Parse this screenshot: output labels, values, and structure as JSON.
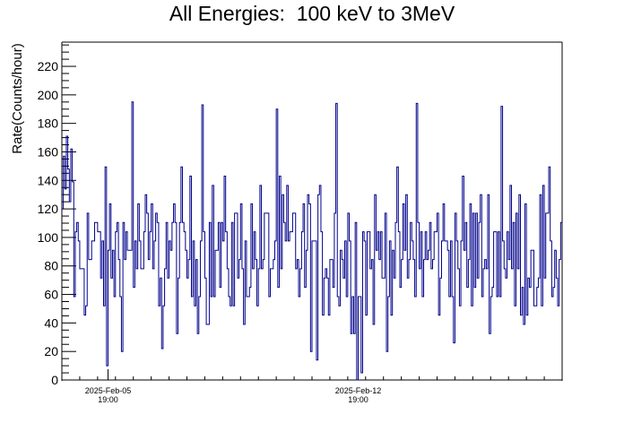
{
  "chart_data": {
    "type": "line",
    "title": "All Energies:  100 keV to 3MeV",
    "xlabel": "",
    "ylabel": "Rate(Counts/hour)",
    "ylim": [
      0,
      237
    ],
    "y_ticks": [
      0,
      20,
      40,
      60,
      80,
      100,
      120,
      140,
      160,
      180,
      200,
      220
    ],
    "x_range": [
      "2025-Feb-04 12:00",
      "2025-Feb-18 12:00"
    ],
    "x_ticks": [
      {
        "date": "2025-Feb-05",
        "time": "19:00"
      },
      {
        "date": "2025-Feb-12",
        "time": "19:00"
      }
    ],
    "grid": false,
    "series": [
      {
        "color": "#00008b",
        "style": "hourly histogram (step line)",
        "typical_range": [
          40,
          130
        ],
        "mean": 88,
        "peaks": [
          195,
          194,
          194,
          193,
          192,
          190
        ],
        "min_values": [
          0,
          5,
          10,
          14,
          22
        ]
      }
    ]
  }
}
